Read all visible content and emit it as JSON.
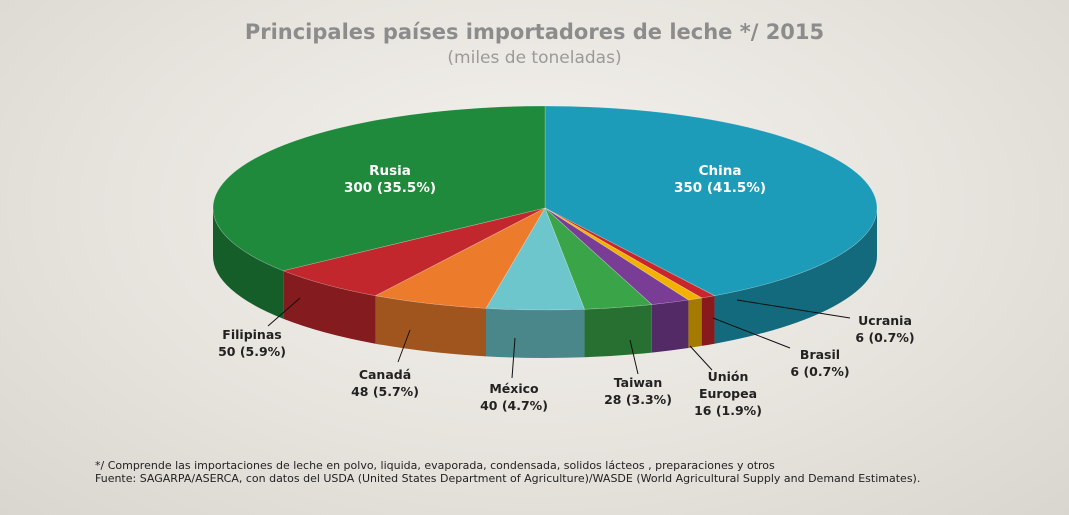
{
  "chart_data": {
    "type": "pie",
    "title": "Principales países importadores de leche */ 2015",
    "subtitle": "(miles de toneladas)",
    "categories": [
      "China",
      "Ucrania",
      "Brasil",
      "Unión Europea",
      "Taiwan",
      "México",
      "Canadá",
      "Filipinas",
      "Rusia"
    ],
    "values": [
      350,
      6,
      6,
      16,
      28,
      40,
      48,
      50,
      300
    ],
    "value_labels": [
      "350 (41.5%)",
      "6 (0.7%)",
      "6 (0.7%)",
      "16 (1.9%)",
      "28 (3.3%)",
      "40 (4.7%)",
      "48 (5.7%)",
      "50 (5.9%)",
      "300 (35.5%)"
    ],
    "colors": [
      "#1c9cb8",
      "#c8262c",
      "#f2b300",
      "#7a3d96",
      "#3aa548",
      "#6cc6cc",
      "#ec7b2c",
      "#c1272d",
      "#1f8a3c"
    ],
    "footnote": "*/ Comprende las importaciones de leche en polvo, liquida, evaporada, condensada, solidos lácteos , preparaciones y otros",
    "source": "Fuente: SAGARPA/ASERCA, con datos del USDA (United States Department of Agriculture)/WASDE (World Agricultural Supply and Demand Estimates)."
  }
}
